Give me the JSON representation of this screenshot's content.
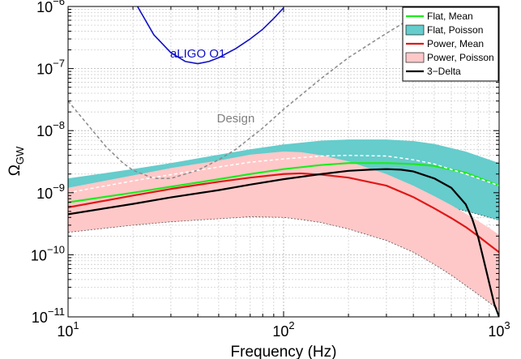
{
  "chart_data": {
    "type": "line",
    "xlabel": "Frequency (Hz)",
    "ylabel": "Ω",
    "ylabel_sub": "GW",
    "x_scale": "log",
    "y_scale": "log",
    "xlim": [
      10,
      1000
    ],
    "ylim": [
      1e-11,
      1e-06
    ],
    "grid": true,
    "legend_position": "top-right",
    "x_ticks": [
      {
        "value": 10,
        "base": "10",
        "exp": "1"
      },
      {
        "value": 100,
        "base": "10",
        "exp": "2"
      },
      {
        "value": 1000,
        "base": "10",
        "exp": "3"
      }
    ],
    "y_ticks": [
      {
        "value": 1e-11,
        "base": "10",
        "exp": "−11"
      },
      {
        "value": 1e-10,
        "base": "10",
        "exp": "−10"
      },
      {
        "value": 1e-09,
        "base": "10",
        "exp": "−9"
      },
      {
        "value": 1e-08,
        "base": "10",
        "exp": "−8"
      },
      {
        "value": 1e-07,
        "base": "10",
        "exp": "−7"
      },
      {
        "value": 1e-06,
        "base": "10",
        "exp": "−6"
      }
    ],
    "annotations": [
      {
        "text": "aLIGO O1",
        "x": 40,
        "y": 1.5e-07,
        "color": "#1010c8"
      },
      {
        "text": "Design",
        "x": 60,
        "y": 1.35e-08,
        "color": "#808080"
      }
    ],
    "series": [
      {
        "name": "Flat, Poisson",
        "kind": "band",
        "color": "#66cccc",
        "x": [
          10,
          20,
          30,
          50,
          70,
          100,
          150,
          200,
          300,
          400,
          500,
          700,
          1000
        ],
        "upper": [
          1.7e-09,
          2.4e-09,
          3e-09,
          4.1e-09,
          5e-09,
          6e-09,
          6.9e-09,
          7.2e-09,
          7.2e-09,
          6.8e-09,
          6.1e-09,
          4.6e-09,
          3e-09
        ],
        "lower": [
          2.9e-10,
          3.6e-10,
          4.1e-10,
          4.8e-10,
          5.4e-10,
          6.1e-10,
          6.8e-10,
          7e-10,
          7e-10,
          6.8e-10,
          6.3e-10,
          5.1e-10,
          3.6e-10
        ]
      },
      {
        "name": "Power, Poisson",
        "kind": "band",
        "color": "#ffc8c8",
        "x": [
          10,
          20,
          30,
          50,
          70,
          100,
          120,
          150,
          200,
          300,
          400,
          500,
          600,
          700,
          800,
          900,
          1000
        ],
        "upper": [
          1.2e-09,
          1.9e-09,
          2.5e-09,
          3.3e-09,
          4.1e-09,
          4.6e-09,
          4.5e-09,
          4e-09,
          3.2e-09,
          2e-09,
          1.3e-09,
          8.8e-10,
          6.3e-10,
          4.6e-10,
          3.5e-10,
          2.7e-10,
          2.1e-10
        ],
        "lower": [
          2.3e-10,
          3e-10,
          3.4e-10,
          3.8e-10,
          4.1e-10,
          4e-10,
          3.7e-10,
          3.3e-10,
          2.6e-10,
          1.7e-10,
          1.1e-10,
          7e-11,
          4.7e-11,
          3.2e-11,
          2.3e-11,
          1.7e-11,
          1.3e-11
        ]
      },
      {
        "name": "Flat, Mean",
        "kind": "line",
        "color": "#1eeb1e",
        "x": [
          10,
          20,
          30,
          50,
          70,
          100,
          150,
          200,
          300,
          400,
          500,
          700,
          1000
        ],
        "y": [
          7e-10,
          1e-09,
          1.25e-09,
          1.65e-09,
          2e-09,
          2.4e-09,
          2.8e-09,
          3e-09,
          3e-09,
          2.9e-09,
          2.7e-09,
          2.1e-09,
          1.3e-09
        ]
      },
      {
        "name": "Power, Mean",
        "kind": "line",
        "color": "#e01818",
        "x": [
          10,
          20,
          30,
          50,
          70,
          100,
          120,
          150,
          200,
          300,
          400,
          500,
          600,
          700,
          800,
          900,
          1000
        ],
        "y": [
          5.8e-10,
          9e-10,
          1.15e-09,
          1.5e-09,
          1.75e-09,
          2e-09,
          2.05e-09,
          1.95e-09,
          1.75e-09,
          1.3e-09,
          8.5e-10,
          5.6e-10,
          3.9e-10,
          2.8e-10,
          2e-10,
          1.45e-10,
          1.1e-10
        ]
      },
      {
        "name": "3−Delta",
        "kind": "line",
        "color": "#000000",
        "x": [
          10,
          20,
          30,
          50,
          70,
          100,
          150,
          200,
          250,
          300,
          350,
          400,
          500,
          600,
          700,
          750,
          800,
          850,
          900,
          950,
          1000
        ],
        "y": [
          4.5e-10,
          6.6e-10,
          8.4e-10,
          1.1e-09,
          1.35e-09,
          1.65e-09,
          2e-09,
          2.25e-09,
          2.35e-09,
          2.4e-09,
          2.35e-09,
          2.2e-09,
          1.7e-09,
          1.2e-09,
          6.5e-10,
          3.8e-10,
          1.9e-10,
          8e-11,
          3.5e-11,
          1.6e-11,
          1e-11
        ]
      },
      {
        "name": "aLIGO O1",
        "kind": "curve",
        "color": "#1010c8",
        "dashed": false,
        "legend": false,
        "x": [
          21,
          25,
          30,
          35,
          40,
          45,
          50,
          60,
          70,
          80,
          90,
          100
        ],
        "y": [
          1e-06,
          3.5e-07,
          1.8e-07,
          1.3e-07,
          1.2e-07,
          1.3e-07,
          1.5e-07,
          2.1e-07,
          3e-07,
          4.3e-07,
          6.4e-07,
          9.5e-07
        ]
      },
      {
        "name": "Design",
        "kind": "curve",
        "color": "#8a8a8a",
        "dashed": true,
        "legend": false,
        "x": [
          10,
          12,
          15,
          18,
          20,
          25,
          30,
          40,
          50,
          60,
          80,
          100,
          150,
          200,
          300,
          400,
          480
        ],
        "y": [
          3e-08,
          1.4e-08,
          5.5e-09,
          3e-09,
          2.3e-09,
          1.7e-09,
          1.7e-09,
          2.3e-09,
          3.4e-09,
          5e-09,
          1.1e-08,
          2.2e-08,
          7e-08,
          1.5e-07,
          3.7e-07,
          6.8e-07,
          1e-06
        ]
      },
      {
        "name": "Flat, Poisson median",
        "kind": "curve",
        "color": "#ffffff",
        "dashed": true,
        "legend": false,
        "x": [
          10,
          20,
          30,
          50,
          70,
          100,
          150,
          200,
          300,
          400,
          500,
          700,
          1000
        ],
        "y": [
          1e-09,
          1.55e-09,
          1.95e-09,
          2.6e-09,
          3.1e-09,
          3.5e-09,
          3.9e-09,
          4e-09,
          3.9e-09,
          3.4e-09,
          2.9e-09,
          2e-09,
          1.3e-09
        ]
      }
    ],
    "legend": [
      {
        "label": "Flat, Mean",
        "kind": "line",
        "color": "#1eeb1e"
      },
      {
        "label": "Flat, Poisson",
        "kind": "patch",
        "color": "#66cccc"
      },
      {
        "label": "Power, Mean",
        "kind": "line",
        "color": "#e01818"
      },
      {
        "label": "Power, Poisson",
        "kind": "patch",
        "color": "#ffc8c8"
      },
      {
        "label": "3−Delta",
        "kind": "line",
        "color": "#000000"
      }
    ]
  }
}
